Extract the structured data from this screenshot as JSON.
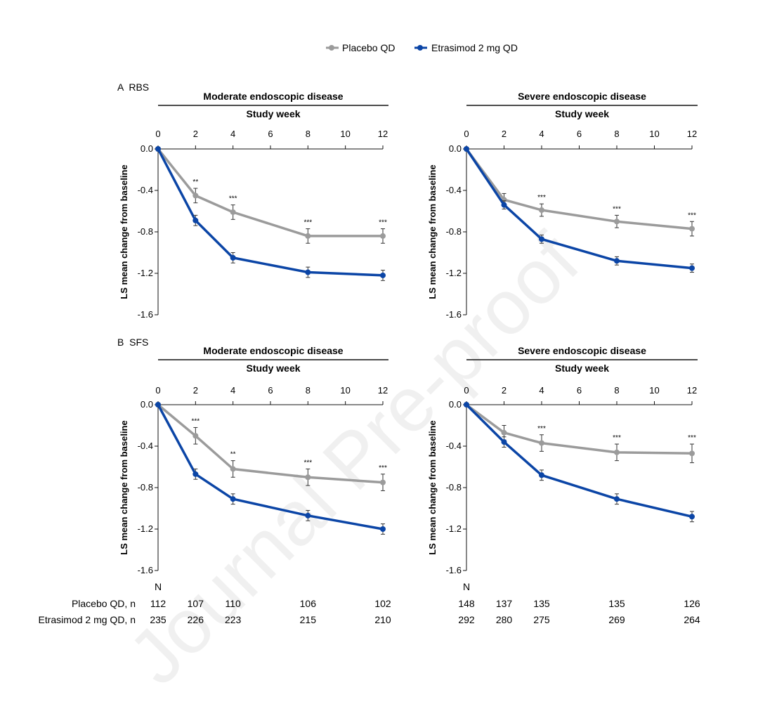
{
  "legend": [
    {
      "label": "Placebo QD",
      "color": "#9b9b9b"
    },
    {
      "label": "Etrasimod 2 mg QD",
      "color": "#0b45a6"
    }
  ],
  "watermark": "Journal Pre-proof",
  "n_table": {
    "header": "N",
    "rows": [
      {
        "label": "Placebo QD, n",
        "moderate": [
          "112",
          "107",
          "110",
          "106",
          "102"
        ],
        "severe": [
          "148",
          "137",
          "135",
          "135",
          "126"
        ]
      },
      {
        "label": "Etrasimod 2 mg QD, n",
        "moderate": [
          "235",
          "226",
          "223",
          "215",
          "210"
        ],
        "severe": [
          "292",
          "280",
          "275",
          "269",
          "264"
        ]
      }
    ]
  },
  "sections": [
    {
      "label": "A  RBS"
    },
    {
      "label": "B  SFS"
    }
  ],
  "chart_data": [
    {
      "type": "line",
      "section": "A  RBS",
      "title": "Moderate endoscopic disease",
      "xlabel": "Study week",
      "ylabel": "LS mean change from baseline",
      "x_ticks": [
        0,
        2,
        4,
        6,
        8,
        10,
        12
      ],
      "y_ticks": [
        "0.0",
        "-0.4",
        "-0.8",
        "-1.2",
        "-1.6"
      ],
      "xlim": [
        0,
        12
      ],
      "ylim": [
        -1.6,
        0
      ],
      "x": [
        0,
        2,
        4,
        8,
        12
      ],
      "series": [
        {
          "name": "Placebo QD",
          "values": [
            0,
            -0.45,
            -0.61,
            -0.84,
            -0.84
          ],
          "err": [
            0,
            0.07,
            0.07,
            0.07,
            0.07
          ]
        },
        {
          "name": "Etrasimod 2 mg QD",
          "values": [
            0,
            -0.69,
            -1.05,
            -1.19,
            -1.22
          ],
          "err": [
            0,
            0.05,
            0.05,
            0.05,
            0.05
          ]
        }
      ],
      "annotations": [
        "",
        "**",
        "***",
        "***",
        "***"
      ]
    },
    {
      "type": "line",
      "section": "A  RBS",
      "title": "Severe endoscopic disease",
      "xlabel": "Study week",
      "ylabel": "LS mean change from baseline",
      "x_ticks": [
        0,
        2,
        4,
        6,
        8,
        10,
        12
      ],
      "y_ticks": [
        "0.0",
        "-0.4",
        "-0.8",
        "-1.2",
        "-1.6"
      ],
      "xlim": [
        0,
        12
      ],
      "ylim": [
        -1.6,
        0
      ],
      "x": [
        0,
        2,
        4,
        8,
        12
      ],
      "series": [
        {
          "name": "Placebo QD",
          "values": [
            0,
            -0.49,
            -0.59,
            -0.7,
            -0.77
          ],
          "err": [
            0,
            0.06,
            0.06,
            0.06,
            0.07
          ]
        },
        {
          "name": "Etrasimod 2 mg QD",
          "values": [
            0,
            -0.54,
            -0.87,
            -1.08,
            -1.15
          ],
          "err": [
            0,
            0.04,
            0.04,
            0.04,
            0.04
          ]
        }
      ],
      "annotations": [
        "",
        "",
        "***",
        "***",
        "***"
      ]
    },
    {
      "type": "line",
      "section": "B  SFS",
      "title": "Moderate endoscopic disease",
      "xlabel": "Study week",
      "ylabel": "LS mean change from baseline",
      "x_ticks": [
        0,
        2,
        4,
        6,
        8,
        10,
        12
      ],
      "y_ticks": [
        "0.0",
        "-0.4",
        "-0.8",
        "-1.2",
        "-1.6"
      ],
      "xlim": [
        0,
        12
      ],
      "ylim": [
        -1.6,
        0
      ],
      "x": [
        0,
        2,
        4,
        8,
        12
      ],
      "series": [
        {
          "name": "Placebo QD",
          "values": [
            0,
            -0.3,
            -0.62,
            -0.7,
            -0.75
          ],
          "err": [
            0,
            0.08,
            0.08,
            0.08,
            0.08
          ]
        },
        {
          "name": "Etrasimod 2 mg QD",
          "values": [
            0,
            -0.67,
            -0.91,
            -1.07,
            -1.2
          ],
          "err": [
            0,
            0.05,
            0.05,
            0.05,
            0.05
          ]
        }
      ],
      "annotations": [
        "",
        "***",
        "**",
        "***",
        "***"
      ]
    },
    {
      "type": "line",
      "section": "B  SFS",
      "title": "Severe endoscopic disease",
      "xlabel": "Study week",
      "ylabel": "LS mean change from baseline",
      "x_ticks": [
        0,
        2,
        4,
        6,
        8,
        10,
        12
      ],
      "y_ticks": [
        "0.0",
        "-0.4",
        "-0.8",
        "-1.2",
        "-1.6"
      ],
      "xlim": [
        0,
        12
      ],
      "ylim": [
        -1.6,
        0
      ],
      "x": [
        0,
        2,
        4,
        8,
        12
      ],
      "series": [
        {
          "name": "Placebo QD",
          "values": [
            0,
            -0.27,
            -0.37,
            -0.46,
            -0.47
          ],
          "err": [
            0,
            0.07,
            0.08,
            0.08,
            0.09
          ]
        },
        {
          "name": "Etrasimod 2 mg QD",
          "values": [
            0,
            -0.36,
            -0.68,
            -0.91,
            -1.08
          ],
          "err": [
            0,
            0.05,
            0.05,
            0.05,
            0.05
          ]
        }
      ],
      "annotations": [
        "",
        "",
        "***",
        "***",
        "***"
      ]
    }
  ]
}
